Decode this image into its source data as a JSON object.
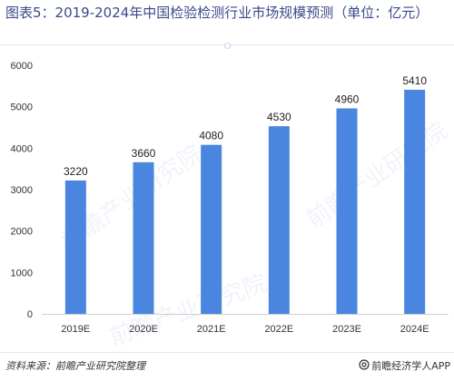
{
  "header": {
    "title": "图表5：2019-2024年中国检验检测行业市场规模预测（单位：亿元）"
  },
  "chart_data": {
    "type": "bar",
    "categories": [
      "2019E",
      "2020E",
      "2021E",
      "2022E",
      "2023E",
      "2024E"
    ],
    "values": [
      3220,
      3660,
      4080,
      4530,
      4960,
      5410
    ],
    "ylim": [
      0,
      6000
    ],
    "yticks": [
      0,
      1000,
      2000,
      3000,
      4000,
      5000,
      6000
    ],
    "grid": false,
    "legend": "none",
    "bar_color": "#4a86e0"
  },
  "footer": {
    "source": "资料来源：前瞻产业研究院整理",
    "brand": "前瞻经济学人APP",
    "brand_icon": "at-icon"
  },
  "watermark": "前瞻产业研究院"
}
